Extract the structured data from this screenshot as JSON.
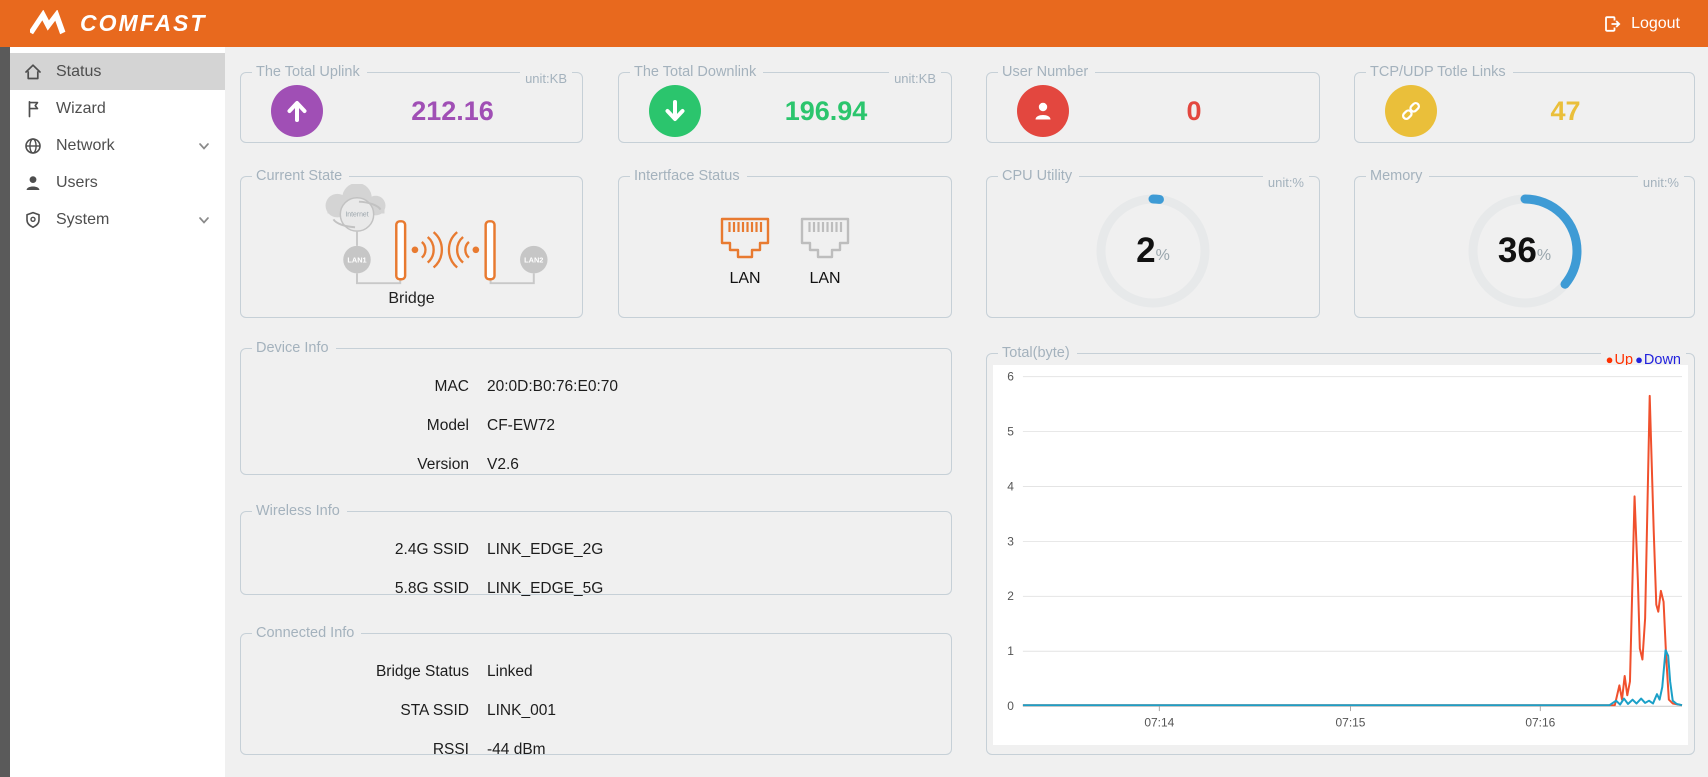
{
  "colors": {
    "header_bg": "#E8691E",
    "gauge_track": "#E7E9EA",
    "card_border": "#C6D0D7",
    "card_title": "#A4B2BD",
    "page_bg": "#F0F0F0",
    "diagram_orange": "#E87A30",
    "diagram_gray": "#C6C6C6"
  },
  "header": {
    "brand": "COMFAST",
    "logout_label": "Logout"
  },
  "sidebar": {
    "items": [
      {
        "label": "Status",
        "selected": true,
        "has_submenu": false
      },
      {
        "label": "Wizard",
        "selected": false,
        "has_submenu": false
      },
      {
        "label": "Network",
        "selected": false,
        "has_submenu": true
      },
      {
        "label": "Users",
        "selected": false,
        "has_submenu": false
      },
      {
        "label": "System",
        "selected": false,
        "has_submenu": true
      }
    ]
  },
  "stat_cards": [
    {
      "title": "The Total Uplink",
      "unit": "unit:KB",
      "value": "212.16",
      "color": "#A04FB5",
      "icon": "arrow-up-icon"
    },
    {
      "title": "The Total Downlink",
      "unit": "unit:KB",
      "value": "196.94",
      "color": "#2BC56D",
      "icon": "arrow-down-icon"
    },
    {
      "title": "User Number",
      "unit": "",
      "value": "0",
      "color": "#E3473F",
      "icon": "user-icon"
    },
    {
      "title": "TCP/UDP Totle Links",
      "unit": "",
      "value": "47",
      "color": "#EABF3A",
      "icon": "chain-link-icon"
    }
  ],
  "current_state": {
    "title": "Current State",
    "mode": "Bridge",
    "internet_label": "Internet",
    "lan1_label": "LAN1",
    "lan2_label": "LAN2"
  },
  "interface_status": {
    "title": "Intertface Status",
    "ports": [
      {
        "label": "LAN",
        "active": true
      },
      {
        "label": "LAN",
        "active": false
      }
    ]
  },
  "gauges": [
    {
      "title": "CPU Utility",
      "unit": "unit:%",
      "value": 2,
      "percent_sign": "%",
      "color": "#3E9BD5"
    },
    {
      "title": "Memory",
      "unit": "unit:%",
      "value": 36,
      "percent_sign": "%",
      "color": "#3E9BD5"
    }
  ],
  "device_info": {
    "title": "Device Info",
    "rows": [
      {
        "label": "MAC",
        "value": "20:0D:B0:76:E0:70"
      },
      {
        "label": "Model",
        "value": "CF-EW72"
      },
      {
        "label": "Version",
        "value": "V2.6"
      }
    ]
  },
  "wireless_info": {
    "title": "Wireless Info",
    "rows": [
      {
        "label": "2.4G SSID",
        "value": "LINK_EDGE_2G"
      },
      {
        "label": "5.8G SSID",
        "value": "LINK_EDGE_5G"
      }
    ]
  },
  "connected_info": {
    "title": "Connected Info",
    "rows": [
      {
        "label": "Bridge Status",
        "value": "Linked"
      },
      {
        "label": "STA SSID",
        "value": "LINK_001"
      },
      {
        "label": "RSSI",
        "value": "-44 dBm"
      }
    ]
  },
  "chart_data": {
    "type": "line",
    "title": "Total(byte)",
    "xlabel": "",
    "ylabel": "",
    "ylim": [
      0,
      6
    ],
    "yticks": [
      0,
      1,
      2,
      3,
      4,
      5,
      6
    ],
    "xticks": [
      {
        "label": "07:14",
        "pos": 0.207
      },
      {
        "label": "07:15",
        "pos": 0.497
      },
      {
        "label": "07:16",
        "pos": 0.785
      }
    ],
    "grid": true,
    "legend_position": "top-right",
    "legend": [
      {
        "name": "Up",
        "color": "#FF3000"
      },
      {
        "name": "Down",
        "color": "#2222DD"
      }
    ],
    "series": [
      {
        "name": "Up",
        "color": "#F0502D",
        "points": [
          [
            0,
            0.02
          ],
          [
            0.88,
            0.02
          ],
          [
            0.898,
            0.02
          ],
          [
            0.905,
            0.38
          ],
          [
            0.909,
            0.12
          ],
          [
            0.913,
            0.55
          ],
          [
            0.917,
            0.2
          ],
          [
            0.921,
            0.45
          ],
          [
            0.928,
            3.82
          ],
          [
            0.933,
            2.3
          ],
          [
            0.936,
            1.05
          ],
          [
            0.94,
            0.85
          ],
          [
            0.944,
            1.6
          ],
          [
            0.951,
            5.65
          ],
          [
            0.957,
            3.2
          ],
          [
            0.961,
            1.85
          ],
          [
            0.964,
            1.72
          ],
          [
            0.968,
            2.1
          ],
          [
            0.972,
            1.9
          ],
          [
            0.976,
            0.9
          ],
          [
            0.98,
            0.12
          ],
          [
            0.986,
            0.05
          ],
          [
            1,
            0.02
          ]
        ]
      },
      {
        "name": "Down",
        "color": "#1BA0C8",
        "points": [
          [
            0,
            0.02
          ],
          [
            0.89,
            0.02
          ],
          [
            0.9,
            0.1
          ],
          [
            0.906,
            0.03
          ],
          [
            0.912,
            0.14
          ],
          [
            0.918,
            0.04
          ],
          [
            0.925,
            0.12
          ],
          [
            0.931,
            0.05
          ],
          [
            0.938,
            0.14
          ],
          [
            0.944,
            0.06
          ],
          [
            0.95,
            0.1
          ],
          [
            0.956,
            0.05
          ],
          [
            0.962,
            0.22
          ],
          [
            0.966,
            0.12
          ],
          [
            0.97,
            0.35
          ],
          [
            0.975,
            1.02
          ],
          [
            0.979,
            0.92
          ],
          [
            0.982,
            0.45
          ],
          [
            0.986,
            0.1
          ],
          [
            0.992,
            0.04
          ],
          [
            1,
            0.02
          ]
        ]
      }
    ]
  }
}
